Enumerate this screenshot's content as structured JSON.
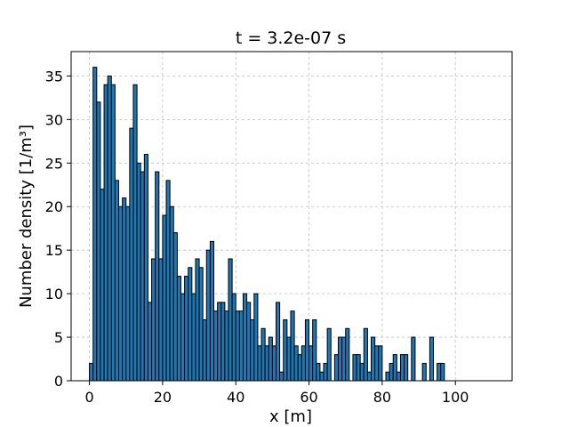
{
  "chart_data": {
    "type": "bar",
    "title": "t = 3.2e-07 s",
    "xlabel": "x [m]",
    "ylabel": "Number density [1/m³]",
    "bin_width": 1,
    "bin_start": 0,
    "values": [
      2,
      36,
      32,
      22,
      34,
      35,
      34,
      23,
      20,
      21,
      20,
      29,
      34,
      25,
      24,
      26,
      9,
      14,
      24,
      14,
      19,
      23,
      20,
      17,
      12,
      10,
      12,
      13,
      10,
      14,
      13,
      7,
      15,
      16,
      8,
      9,
      9,
      8,
      14,
      10,
      8,
      8,
      10,
      9,
      7,
      10,
      4,
      6,
      4,
      5,
      4,
      9,
      1,
      7,
      5,
      8,
      4,
      3,
      4,
      7,
      4,
      7,
      2,
      1,
      2,
      6,
      0,
      3,
      5,
      5,
      6,
      0,
      3,
      3,
      2,
      6,
      1,
      5,
      4,
      4,
      0,
      1,
      2,
      3,
      1,
      3,
      3,
      0,
      5,
      0,
      0,
      2,
      0,
      5,
      0,
      2,
      2,
      0,
      0,
      0,
      0,
      0,
      0,
      0,
      0,
      0,
      0,
      0,
      0,
      0
    ],
    "xlim": [
      -5,
      115.5
    ],
    "ylim": [
      0,
      37.8
    ],
    "xticks": [
      0,
      20,
      40,
      60,
      80,
      100
    ],
    "yticks": [
      0,
      5,
      10,
      15,
      20,
      25,
      30,
      35
    ],
    "grid": true,
    "bar_color": "#1f77b4",
    "edge_color": "#000000"
  }
}
